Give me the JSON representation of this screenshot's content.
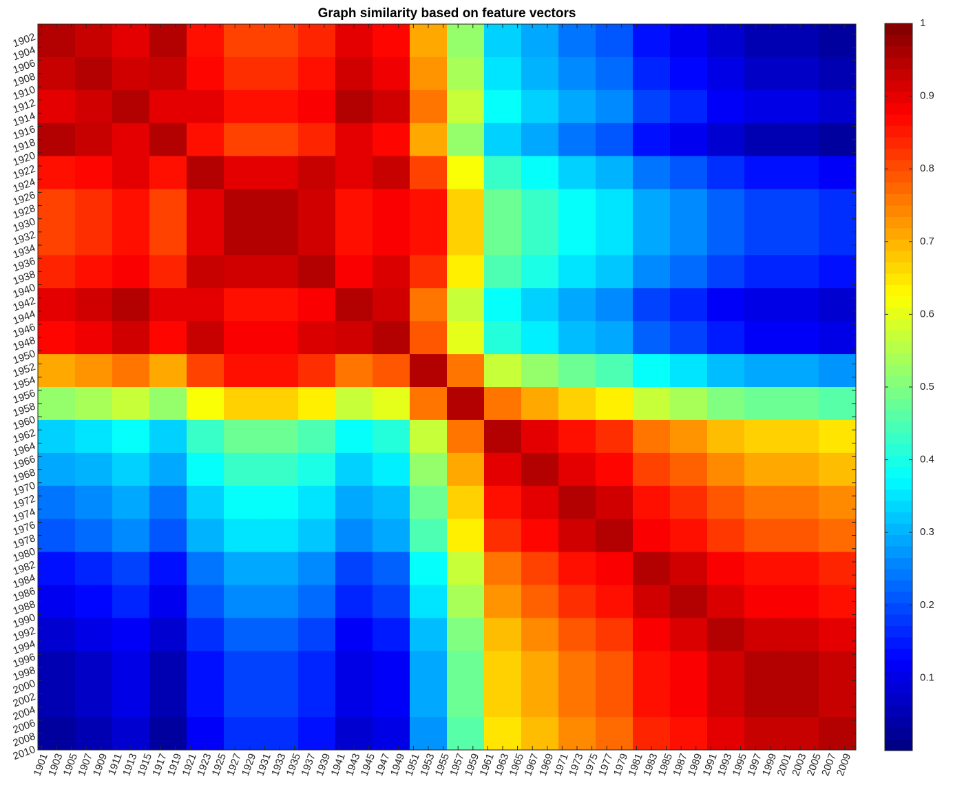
{
  "chart_data": {
    "type": "heatmap",
    "title": "Graph similarity based on feature vectors",
    "colormap": "jet",
    "clim": [
      0,
      1
    ],
    "cticks": [
      0.1,
      0.2,
      0.3,
      0.4,
      0.5,
      0.6,
      0.7,
      0.8,
      0.9,
      1
    ],
    "xlim": [
      1900.5,
      2010.5
    ],
    "ylim": [
      2010.5,
      1900.5
    ],
    "xticks": [
      1901,
      1903,
      1905,
      1907,
      1909,
      1911,
      1913,
      1915,
      1917,
      1919,
      1921,
      1923,
      1925,
      1927,
      1929,
      1931,
      1933,
      1935,
      1937,
      1939,
      1941,
      1943,
      1945,
      1947,
      1949,
      1951,
      1953,
      1955,
      1957,
      1959,
      1961,
      1963,
      1965,
      1967,
      1969,
      1971,
      1973,
      1975,
      1977,
      1979,
      1981,
      1983,
      1985,
      1987,
      1989,
      1991,
      1993,
      1995,
      1997,
      1999,
      2001,
      2003,
      2005,
      2007,
      2009
    ],
    "yticks": [
      1902,
      1904,
      1906,
      1908,
      1910,
      1912,
      1914,
      1916,
      1918,
      1920,
      1922,
      1924,
      1926,
      1928,
      1930,
      1932,
      1934,
      1936,
      1938,
      1940,
      1942,
      1944,
      1946,
      1948,
      1950,
      1952,
      1954,
      1956,
      1958,
      1960,
      1962,
      1964,
      1966,
      1968,
      1970,
      1972,
      1974,
      1976,
      1978,
      1980,
      1982,
      1984,
      1986,
      1988,
      1990,
      1992,
      1994,
      1996,
      1998,
      2000,
      2002,
      2004,
      2006,
      2008,
      2010
    ],
    "x_edges": [
      1900.5,
      1905.5,
      1910.5,
      1915.5,
      1920.5,
      1925.5,
      1930.5,
      1935.5,
      1940.5,
      1945.5,
      1950.5,
      1955.5,
      1960.5,
      1965.5,
      1970.5,
      1975.5,
      1980.5,
      1985.5,
      1990.5,
      1995.5,
      2000.5,
      2005.5,
      2010.5
    ],
    "y_edges": [
      1900.5,
      1905.5,
      1910.5,
      1915.5,
      1920.5,
      1925.5,
      1930.5,
      1935.5,
      1940.5,
      1945.5,
      1950.5,
      1955.5,
      1960.5,
      1965.5,
      1970.5,
      1975.5,
      1980.5,
      1985.5,
      1990.5,
      1995.5,
      2000.5,
      2005.5,
      2010.5
    ],
    "z": [
      [
        0.95,
        0.93,
        0.9,
        0.95,
        0.86,
        0.81,
        0.81,
        0.84,
        0.9,
        0.87,
        0.71,
        0.52,
        0.33,
        0.29,
        0.24,
        0.21,
        0.14,
        0.11,
        0.08,
        0.05,
        0.05,
        0.03
      ],
      [
        0.93,
        0.95,
        0.92,
        0.93,
        0.87,
        0.83,
        0.83,
        0.86,
        0.92,
        0.89,
        0.73,
        0.54,
        0.35,
        0.3,
        0.26,
        0.23,
        0.16,
        0.13,
        0.1,
        0.07,
        0.07,
        0.05
      ],
      [
        0.9,
        0.92,
        0.95,
        0.9,
        0.9,
        0.86,
        0.86,
        0.88,
        0.95,
        0.92,
        0.76,
        0.57,
        0.38,
        0.33,
        0.29,
        0.26,
        0.19,
        0.16,
        0.12,
        0.1,
        0.1,
        0.08
      ],
      [
        0.95,
        0.93,
        0.9,
        0.95,
        0.86,
        0.81,
        0.81,
        0.84,
        0.9,
        0.87,
        0.71,
        0.52,
        0.33,
        0.29,
        0.24,
        0.21,
        0.14,
        0.11,
        0.08,
        0.05,
        0.05,
        0.03
      ],
      [
        0.86,
        0.87,
        0.9,
        0.86,
        0.95,
        0.9,
        0.9,
        0.93,
        0.9,
        0.93,
        0.81,
        0.62,
        0.43,
        0.38,
        0.33,
        0.3,
        0.24,
        0.21,
        0.17,
        0.14,
        0.14,
        0.12
      ],
      [
        0.81,
        0.83,
        0.86,
        0.81,
        0.9,
        0.95,
        0.95,
        0.92,
        0.86,
        0.88,
        0.86,
        0.67,
        0.48,
        0.43,
        0.38,
        0.35,
        0.29,
        0.26,
        0.22,
        0.19,
        0.19,
        0.17
      ],
      [
        0.81,
        0.83,
        0.86,
        0.81,
        0.9,
        0.95,
        0.95,
        0.92,
        0.86,
        0.88,
        0.86,
        0.67,
        0.48,
        0.43,
        0.38,
        0.35,
        0.29,
        0.26,
        0.22,
        0.19,
        0.19,
        0.17
      ],
      [
        0.84,
        0.86,
        0.88,
        0.84,
        0.93,
        0.92,
        0.92,
        0.95,
        0.88,
        0.91,
        0.83,
        0.64,
        0.45,
        0.4,
        0.35,
        0.32,
        0.26,
        0.23,
        0.19,
        0.16,
        0.16,
        0.14
      ],
      [
        0.9,
        0.92,
        0.95,
        0.9,
        0.9,
        0.86,
        0.86,
        0.88,
        0.95,
        0.92,
        0.76,
        0.57,
        0.38,
        0.33,
        0.29,
        0.26,
        0.19,
        0.16,
        0.12,
        0.1,
        0.1,
        0.08
      ],
      [
        0.87,
        0.89,
        0.92,
        0.87,
        0.93,
        0.88,
        0.88,
        0.91,
        0.92,
        0.95,
        0.79,
        0.6,
        0.41,
        0.36,
        0.31,
        0.29,
        0.22,
        0.19,
        0.15,
        0.12,
        0.12,
        0.1
      ],
      [
        0.71,
        0.73,
        0.76,
        0.71,
        0.81,
        0.86,
        0.86,
        0.83,
        0.76,
        0.79,
        0.95,
        0.76,
        0.57,
        0.52,
        0.48,
        0.45,
        0.38,
        0.35,
        0.31,
        0.29,
        0.29,
        0.27
      ],
      [
        0.52,
        0.54,
        0.57,
        0.52,
        0.62,
        0.67,
        0.67,
        0.64,
        0.57,
        0.6,
        0.76,
        0.95,
        0.76,
        0.71,
        0.67,
        0.64,
        0.57,
        0.54,
        0.5,
        0.48,
        0.48,
        0.46
      ],
      [
        0.33,
        0.35,
        0.38,
        0.33,
        0.43,
        0.48,
        0.48,
        0.45,
        0.38,
        0.41,
        0.57,
        0.76,
        0.95,
        0.9,
        0.86,
        0.83,
        0.76,
        0.73,
        0.69,
        0.67,
        0.67,
        0.65
      ],
      [
        0.29,
        0.3,
        0.33,
        0.29,
        0.38,
        0.43,
        0.43,
        0.4,
        0.33,
        0.36,
        0.52,
        0.71,
        0.9,
        0.95,
        0.9,
        0.87,
        0.81,
        0.78,
        0.74,
        0.71,
        0.71,
        0.69
      ],
      [
        0.24,
        0.26,
        0.29,
        0.24,
        0.33,
        0.38,
        0.38,
        0.35,
        0.29,
        0.31,
        0.48,
        0.67,
        0.86,
        0.9,
        0.95,
        0.92,
        0.86,
        0.83,
        0.79,
        0.76,
        0.76,
        0.74
      ],
      [
        0.21,
        0.23,
        0.26,
        0.21,
        0.3,
        0.35,
        0.35,
        0.32,
        0.26,
        0.29,
        0.45,
        0.64,
        0.83,
        0.87,
        0.92,
        0.95,
        0.88,
        0.86,
        0.82,
        0.79,
        0.79,
        0.77
      ],
      [
        0.14,
        0.16,
        0.19,
        0.14,
        0.24,
        0.29,
        0.29,
        0.26,
        0.19,
        0.22,
        0.38,
        0.57,
        0.76,
        0.81,
        0.86,
        0.88,
        0.95,
        0.92,
        0.88,
        0.86,
        0.86,
        0.84
      ],
      [
        0.11,
        0.13,
        0.16,
        0.11,
        0.21,
        0.26,
        0.26,
        0.23,
        0.16,
        0.19,
        0.35,
        0.54,
        0.73,
        0.78,
        0.83,
        0.86,
        0.92,
        0.95,
        0.91,
        0.88,
        0.88,
        0.86
      ],
      [
        0.08,
        0.1,
        0.12,
        0.08,
        0.17,
        0.22,
        0.22,
        0.19,
        0.12,
        0.15,
        0.31,
        0.5,
        0.69,
        0.74,
        0.79,
        0.82,
        0.88,
        0.91,
        0.95,
        0.92,
        0.92,
        0.9
      ],
      [
        0.05,
        0.07,
        0.1,
        0.05,
        0.14,
        0.19,
        0.19,
        0.16,
        0.1,
        0.12,
        0.29,
        0.48,
        0.67,
        0.71,
        0.76,
        0.79,
        0.86,
        0.88,
        0.92,
        0.95,
        0.95,
        0.93
      ],
      [
        0.05,
        0.07,
        0.1,
        0.05,
        0.14,
        0.19,
        0.19,
        0.16,
        0.1,
        0.12,
        0.29,
        0.48,
        0.67,
        0.71,
        0.76,
        0.79,
        0.86,
        0.88,
        0.92,
        0.95,
        0.95,
        0.93
      ],
      [
        0.03,
        0.05,
        0.08,
        0.03,
        0.12,
        0.17,
        0.17,
        0.14,
        0.08,
        0.1,
        0.27,
        0.46,
        0.65,
        0.69,
        0.74,
        0.77,
        0.84,
        0.86,
        0.9,
        0.93,
        0.93,
        0.95
      ]
    ]
  }
}
